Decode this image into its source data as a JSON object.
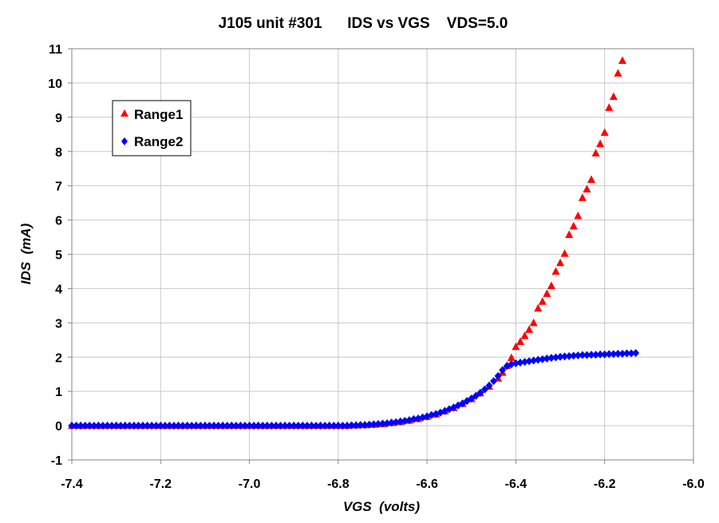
{
  "chart_data": {
    "type": "scatter",
    "title": "J105 unit #301      IDS vs VGS    VDS=5.0",
    "xlabel": "VGS  (volts)",
    "ylabel": "IDS  (mA)",
    "xlim": [
      -7.4,
      -6.0
    ],
    "ylim": [
      -1,
      11
    ],
    "x_ticks": [
      "-7.4",
      "-7.2",
      "-7.0",
      "-6.8",
      "-6.6",
      "-6.4",
      "-6.2",
      "-6.0"
    ],
    "y_ticks": [
      "-1",
      "0",
      "1",
      "2",
      "3",
      "4",
      "5",
      "6",
      "7",
      "8",
      "9",
      "10",
      "11"
    ],
    "grid": true,
    "legend_position": "top-left",
    "series": [
      {
        "name": "Range1",
        "marker": "triangle",
        "color": "#ff0000",
        "points": [
          [
            -7.4,
            0.0
          ],
          [
            -7.38,
            0.0
          ],
          [
            -7.36,
            0.0
          ],
          [
            -7.34,
            0.0
          ],
          [
            -7.32,
            0.0
          ],
          [
            -7.3,
            0.0
          ],
          [
            -7.28,
            0.0
          ],
          [
            -7.26,
            0.0
          ],
          [
            -7.24,
            0.0
          ],
          [
            -7.22,
            0.0
          ],
          [
            -7.2,
            0.0
          ],
          [
            -7.18,
            0.0
          ],
          [
            -7.16,
            0.0
          ],
          [
            -7.14,
            0.0
          ],
          [
            -7.12,
            0.0
          ],
          [
            -7.1,
            0.0
          ],
          [
            -7.08,
            0.0
          ],
          [
            -7.06,
            0.0
          ],
          [
            -7.04,
            0.0
          ],
          [
            -7.02,
            0.0
          ],
          [
            -7.0,
            0.0
          ],
          [
            -6.98,
            0.0
          ],
          [
            -6.96,
            0.0
          ],
          [
            -6.94,
            0.0
          ],
          [
            -6.92,
            0.0
          ],
          [
            -6.9,
            0.0
          ],
          [
            -6.88,
            0.0
          ],
          [
            -6.86,
            0.0
          ],
          [
            -6.84,
            0.0
          ],
          [
            -6.82,
            0.0
          ],
          [
            -6.8,
            0.0
          ],
          [
            -6.78,
            0.0
          ],
          [
            -6.76,
            0.01
          ],
          [
            -6.74,
            0.02
          ],
          [
            -6.72,
            0.03
          ],
          [
            -6.7,
            0.05
          ],
          [
            -6.68,
            0.08
          ],
          [
            -6.66,
            0.11
          ],
          [
            -6.64,
            0.15
          ],
          [
            -6.62,
            0.2
          ],
          [
            -6.6,
            0.26
          ],
          [
            -6.58,
            0.33
          ],
          [
            -6.56,
            0.42
          ],
          [
            -6.54,
            0.52
          ],
          [
            -6.52,
            0.64
          ],
          [
            -6.5,
            0.78
          ],
          [
            -6.48,
            0.95
          ],
          [
            -6.46,
            1.14
          ],
          [
            -6.44,
            1.38
          ],
          [
            -6.43,
            1.55
          ],
          [
            -6.42,
            1.75
          ],
          [
            -6.41,
            1.98
          ],
          [
            -6.4,
            2.3
          ],
          [
            -6.39,
            2.45
          ],
          [
            -6.38,
            2.62
          ],
          [
            -6.37,
            2.8
          ],
          [
            -6.36,
            3.0
          ],
          [
            -6.35,
            3.42
          ],
          [
            -6.34,
            3.62
          ],
          [
            -6.33,
            3.85
          ],
          [
            -6.32,
            4.08
          ],
          [
            -6.31,
            4.5
          ],
          [
            -6.3,
            4.75
          ],
          [
            -6.29,
            5.02
          ],
          [
            -6.28,
            5.57
          ],
          [
            -6.27,
            5.82
          ],
          [
            -6.26,
            6.12
          ],
          [
            -6.25,
            6.65
          ],
          [
            -6.24,
            6.9
          ],
          [
            -6.23,
            7.18
          ],
          [
            -6.22,
            7.95
          ],
          [
            -6.21,
            8.22
          ],
          [
            -6.2,
            8.55
          ],
          [
            -6.19,
            9.28
          ],
          [
            -6.18,
            9.6
          ],
          [
            -6.17,
            10.28
          ],
          [
            -6.16,
            10.65
          ]
        ]
      },
      {
        "name": "Range2",
        "marker": "diamond",
        "color": "#0000ff",
        "points": [
          [
            -7.4,
            0.0
          ],
          [
            -7.39,
            0.0
          ],
          [
            -7.38,
            0.0
          ],
          [
            -7.37,
            0.0
          ],
          [
            -7.36,
            0.0
          ],
          [
            -7.35,
            0.0
          ],
          [
            -7.34,
            0.0
          ],
          [
            -7.33,
            0.0
          ],
          [
            -7.32,
            0.0
          ],
          [
            -7.31,
            0.0
          ],
          [
            -7.3,
            0.0
          ],
          [
            -7.29,
            0.0
          ],
          [
            -7.28,
            0.0
          ],
          [
            -7.27,
            0.0
          ],
          [
            -7.26,
            0.0
          ],
          [
            -7.25,
            0.0
          ],
          [
            -7.24,
            0.0
          ],
          [
            -7.23,
            0.0
          ],
          [
            -7.22,
            0.0
          ],
          [
            -7.21,
            0.0
          ],
          [
            -7.2,
            0.0
          ],
          [
            -7.19,
            0.0
          ],
          [
            -7.18,
            0.0
          ],
          [
            -7.17,
            0.0
          ],
          [
            -7.16,
            0.0
          ],
          [
            -7.15,
            0.0
          ],
          [
            -7.14,
            0.0
          ],
          [
            -7.13,
            0.0
          ],
          [
            -7.12,
            0.0
          ],
          [
            -7.11,
            0.0
          ],
          [
            -7.1,
            0.0
          ],
          [
            -7.09,
            0.0
          ],
          [
            -7.08,
            0.0
          ],
          [
            -7.07,
            0.0
          ],
          [
            -7.06,
            0.0
          ],
          [
            -7.05,
            0.0
          ],
          [
            -7.04,
            0.0
          ],
          [
            -7.03,
            0.0
          ],
          [
            -7.02,
            0.0
          ],
          [
            -7.01,
            0.0
          ],
          [
            -7.0,
            0.0
          ],
          [
            -6.99,
            0.0
          ],
          [
            -6.98,
            0.0
          ],
          [
            -6.97,
            0.0
          ],
          [
            -6.96,
            0.0
          ],
          [
            -6.95,
            0.0
          ],
          [
            -6.94,
            0.0
          ],
          [
            -6.93,
            0.0
          ],
          [
            -6.92,
            0.0
          ],
          [
            -6.91,
            0.0
          ],
          [
            -6.9,
            0.0
          ],
          [
            -6.89,
            0.0
          ],
          [
            -6.88,
            0.0
          ],
          [
            -6.87,
            0.0
          ],
          [
            -6.86,
            0.0
          ],
          [
            -6.85,
            0.0
          ],
          [
            -6.84,
            0.0
          ],
          [
            -6.83,
            0.0
          ],
          [
            -6.82,
            0.0
          ],
          [
            -6.81,
            0.0
          ],
          [
            -6.8,
            0.0
          ],
          [
            -6.79,
            0.0
          ],
          [
            -6.78,
            0.0
          ],
          [
            -6.77,
            0.01
          ],
          [
            -6.76,
            0.01
          ],
          [
            -6.75,
            0.02
          ],
          [
            -6.74,
            0.02
          ],
          [
            -6.73,
            0.03
          ],
          [
            -6.72,
            0.04
          ],
          [
            -6.71,
            0.05
          ],
          [
            -6.7,
            0.06
          ],
          [
            -6.69,
            0.07
          ],
          [
            -6.68,
            0.09
          ],
          [
            -6.67,
            0.1
          ],
          [
            -6.66,
            0.12
          ],
          [
            -6.65,
            0.14
          ],
          [
            -6.64,
            0.16
          ],
          [
            -6.63,
            0.19
          ],
          [
            -6.62,
            0.21
          ],
          [
            -6.61,
            0.24
          ],
          [
            -6.6,
            0.27
          ],
          [
            -6.59,
            0.31
          ],
          [
            -6.58,
            0.34
          ],
          [
            -6.57,
            0.38
          ],
          [
            -6.56,
            0.43
          ],
          [
            -6.55,
            0.48
          ],
          [
            -6.54,
            0.53
          ],
          [
            -6.53,
            0.59
          ],
          [
            -6.52,
            0.65
          ],
          [
            -6.51,
            0.72
          ],
          [
            -6.5,
            0.79
          ],
          [
            -6.49,
            0.87
          ],
          [
            -6.48,
            0.96
          ],
          [
            -6.47,
            1.06
          ],
          [
            -6.46,
            1.17
          ],
          [
            -6.45,
            1.3
          ],
          [
            -6.44,
            1.45
          ],
          [
            -6.43,
            1.62
          ],
          [
            -6.42,
            1.74
          ],
          [
            -6.41,
            1.79
          ],
          [
            -6.4,
            1.82
          ],
          [
            -6.39,
            1.84
          ],
          [
            -6.38,
            1.86
          ],
          [
            -6.37,
            1.88
          ],
          [
            -6.36,
            1.9
          ],
          [
            -6.35,
            1.92
          ],
          [
            -6.34,
            1.94
          ],
          [
            -6.33,
            1.96
          ],
          [
            -6.32,
            1.98
          ],
          [
            -6.31,
            1.99
          ],
          [
            -6.3,
            2.01
          ],
          [
            -6.29,
            2.02
          ],
          [
            -6.28,
            2.03
          ],
          [
            -6.27,
            2.04
          ],
          [
            -6.26,
            2.05
          ],
          [
            -6.25,
            2.06
          ],
          [
            -6.24,
            2.06
          ],
          [
            -6.23,
            2.07
          ],
          [
            -6.22,
            2.07
          ],
          [
            -6.21,
            2.08
          ],
          [
            -6.2,
            2.08
          ],
          [
            -6.19,
            2.09
          ],
          [
            -6.18,
            2.09
          ],
          [
            -6.17,
            2.1
          ],
          [
            -6.16,
            2.1
          ],
          [
            -6.15,
            2.11
          ],
          [
            -6.14,
            2.11
          ],
          [
            -6.13,
            2.12
          ]
        ]
      }
    ]
  }
}
